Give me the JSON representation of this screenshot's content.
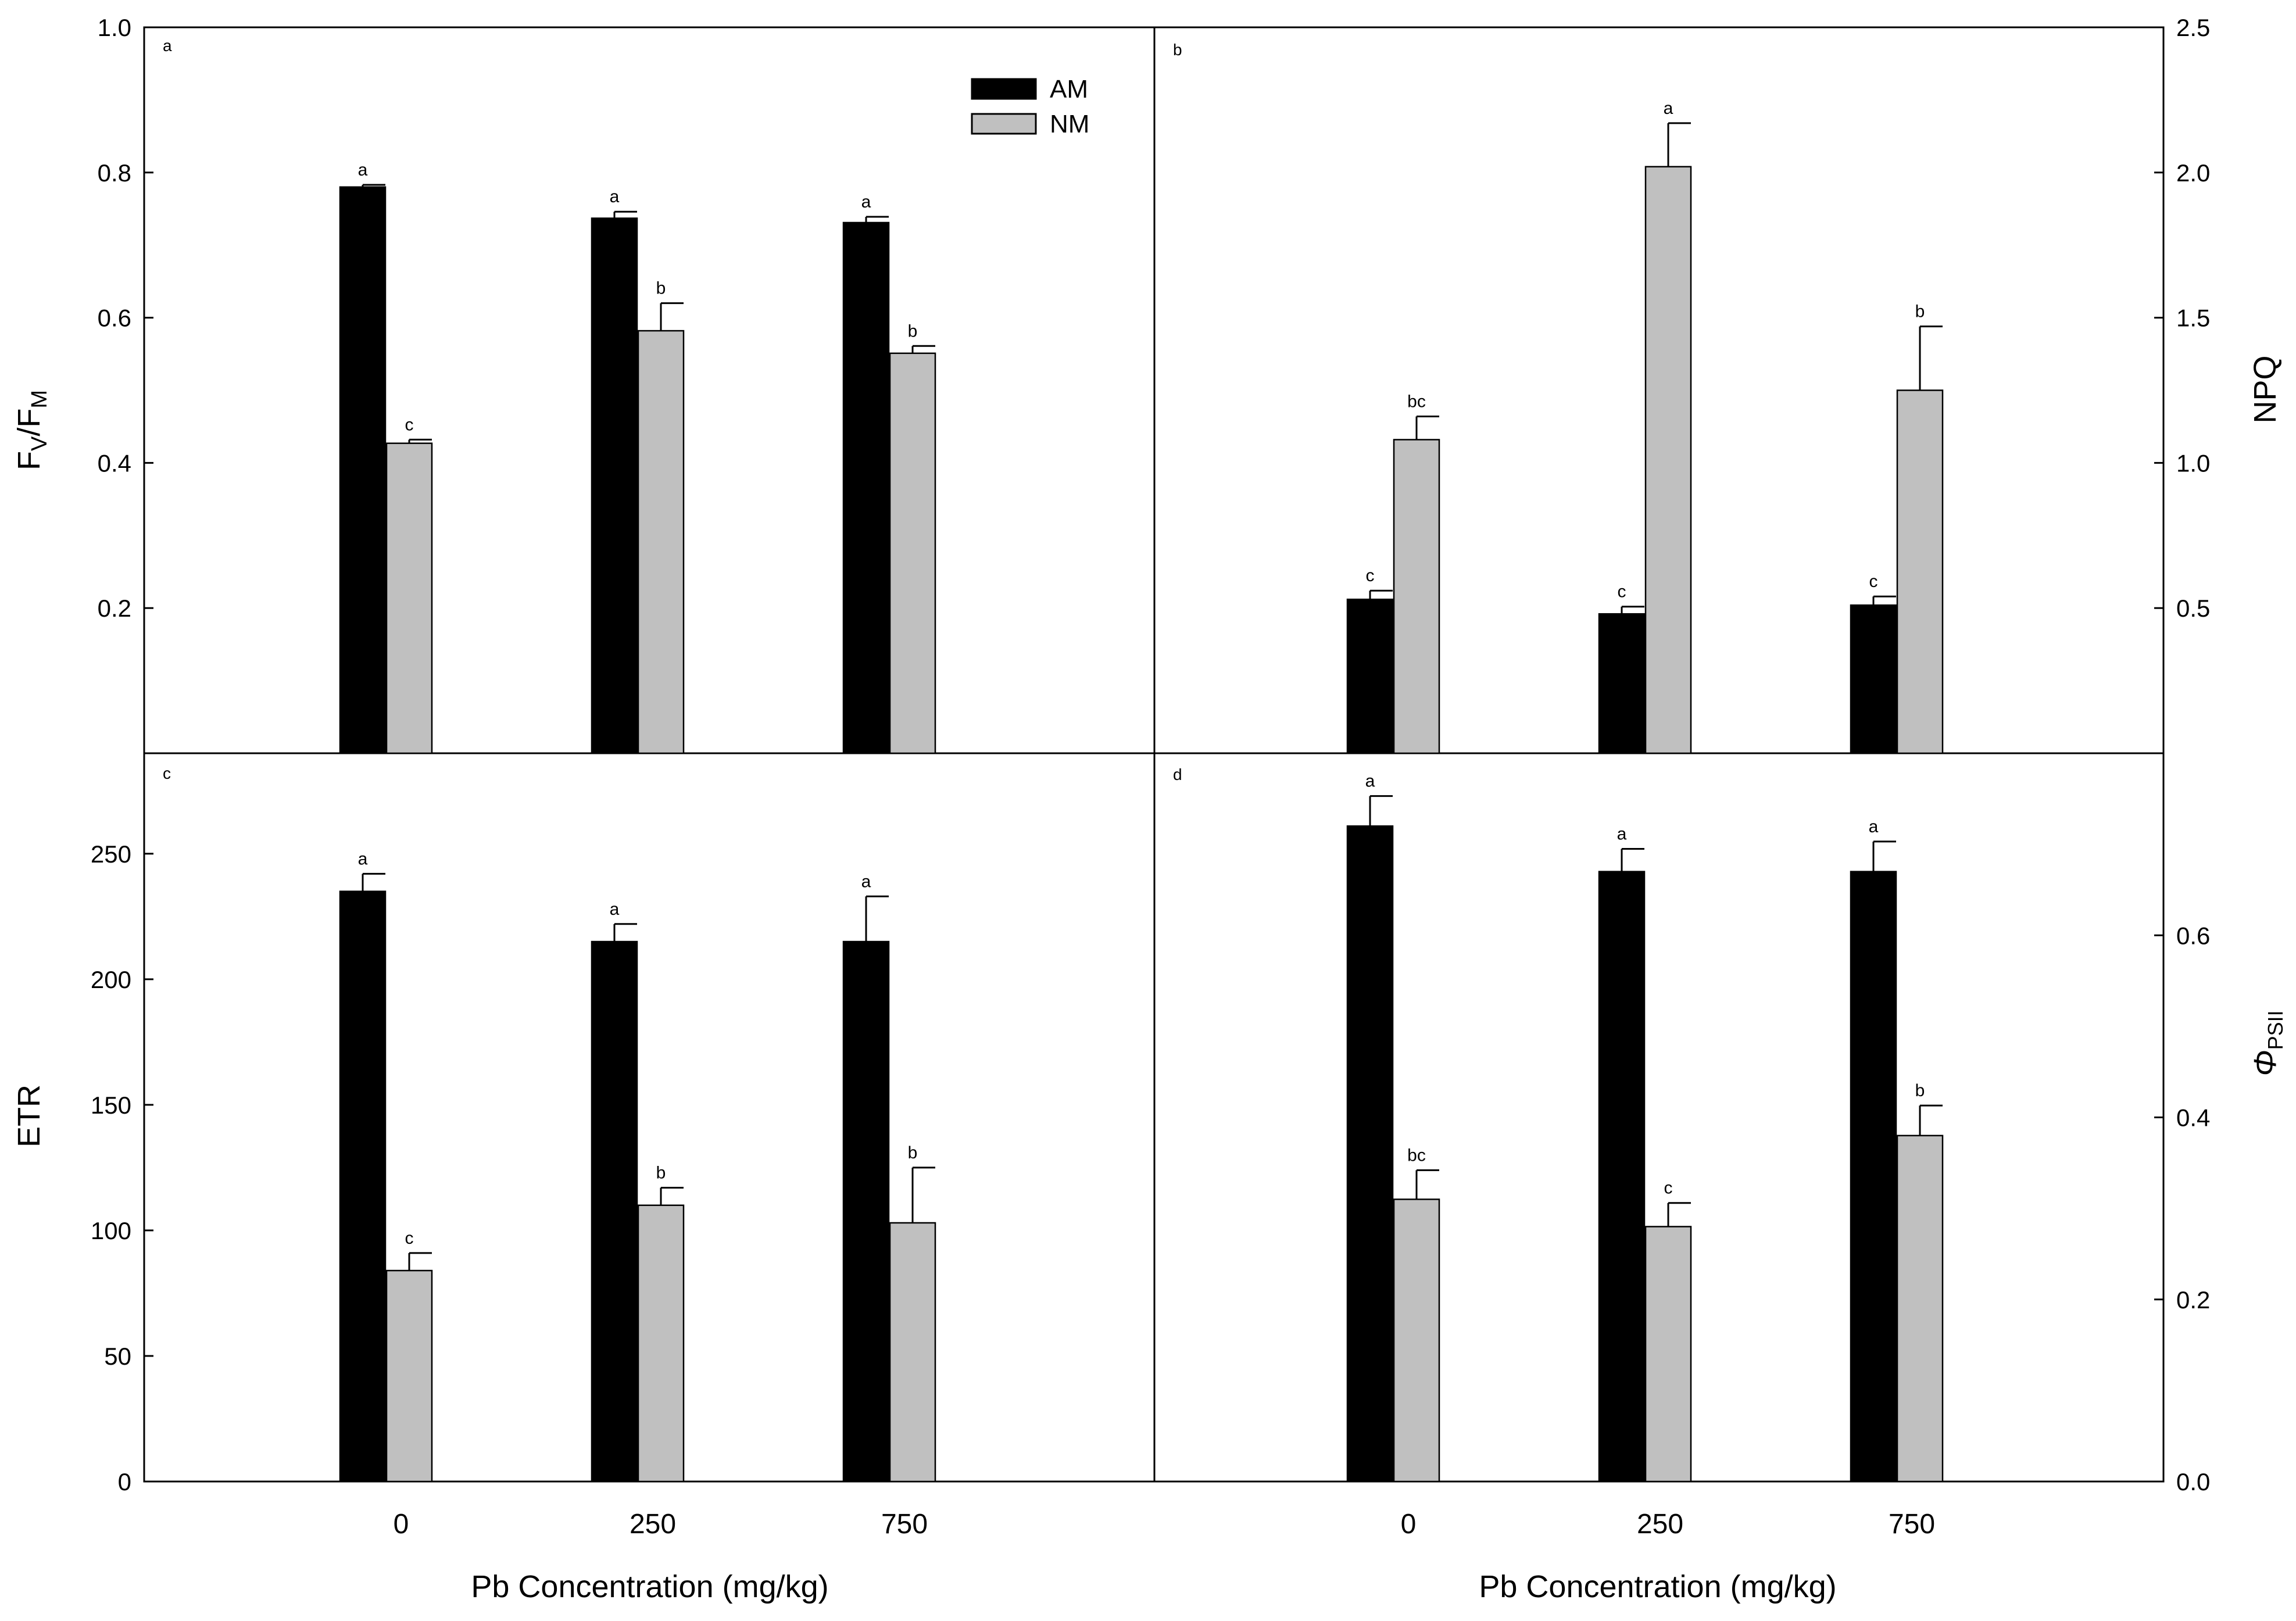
{
  "chart_data": [
    {
      "panel": "a",
      "type": "bar",
      "ylabel_main": "F",
      "ylabel_sub1": "V",
      "ylabel_mid": "/F",
      "ylabel_sub2": "M",
      "ylim": [
        0,
        1.0
      ],
      "yticks": [
        "0.2",
        "0.4",
        "0.6",
        "0.8",
        "1.0"
      ],
      "categories": [
        "0",
        "250",
        "750"
      ],
      "series": [
        {
          "name": "AM",
          "color": "#000000",
          "values": [
            0.78,
            0.737,
            0.731
          ],
          "errors": [
            0.003,
            0.009,
            0.008
          ],
          "letters": [
            "a",
            "a",
            "a"
          ]
        },
        {
          "name": "NM",
          "color": "#c0c0c0",
          "values": [
            0.427,
            0.582,
            0.551
          ],
          "errors": [
            0.005,
            0.038,
            0.01
          ],
          "letters": [
            "c",
            "b",
            "b"
          ]
        }
      ]
    },
    {
      "panel": "b",
      "type": "bar",
      "ylabel": "NPQ",
      "ylim": [
        0,
        2.5
      ],
      "yticks": [
        "0.5",
        "1.0",
        "1.5",
        "2.0",
        "2.5"
      ],
      "categories": [
        "0",
        "250",
        "750"
      ],
      "series": [
        {
          "name": "AM",
          "color": "#000000",
          "values": [
            0.53,
            0.48,
            0.51
          ],
          "errors": [
            0.03,
            0.025,
            0.03
          ],
          "letters": [
            "c",
            "c",
            "c"
          ]
        },
        {
          "name": "NM",
          "color": "#c0c0c0",
          "values": [
            1.08,
            2.02,
            1.25
          ],
          "errors": [
            0.08,
            0.15,
            0.22
          ],
          "letters": [
            "bc",
            "a",
            "b"
          ]
        }
      ]
    },
    {
      "panel": "c",
      "type": "bar",
      "ylabel": "ETR",
      "ylim": [
        0,
        290
      ],
      "yticks": [
        "0",
        "50",
        "100",
        "150",
        "200",
        "250"
      ],
      "xlabel": "Pb Concentration (mg/kg)",
      "categories": [
        "0",
        "250",
        "750"
      ],
      "series": [
        {
          "name": "AM",
          "color": "#000000",
          "values": [
            235,
            215,
            215
          ],
          "errors": [
            7,
            7,
            18
          ],
          "letters": [
            "a",
            "a",
            "a"
          ]
        },
        {
          "name": "NM",
          "color": "#c0c0c0",
          "values": [
            84,
            110,
            103
          ],
          "errors": [
            7,
            7,
            22
          ],
          "letters": [
            "c",
            "b",
            "b"
          ]
        }
      ]
    },
    {
      "panel": "d",
      "type": "bar",
      "ylabel_symbol": "Φ",
      "ylabel_sub": "PSII",
      "ylim": [
        0,
        0.8
      ],
      "yticks": [
        "0.0",
        "0.2",
        "0.4",
        "0.6"
      ],
      "xlabel": "Pb Concentration (mg/kg)",
      "categories": [
        "0",
        "250",
        "750"
      ],
      "series": [
        {
          "name": "AM",
          "color": "#000000",
          "values": [
            0.72,
            0.67,
            0.67
          ],
          "errors": [
            0.033,
            0.025,
            0.033
          ],
          "letters": [
            "a",
            "a",
            "a"
          ]
        },
        {
          "name": "NM",
          "color": "#c0c0c0",
          "values": [
            0.31,
            0.28,
            0.38
          ],
          "errors": [
            0.032,
            0.026,
            0.033
          ],
          "letters": [
            "bc",
            "c",
            "b"
          ]
        }
      ]
    }
  ],
  "legend": {
    "items": [
      {
        "name": "AM",
        "color": "#000000"
      },
      {
        "name": "NM",
        "color": "#c0c0c0"
      }
    ]
  }
}
